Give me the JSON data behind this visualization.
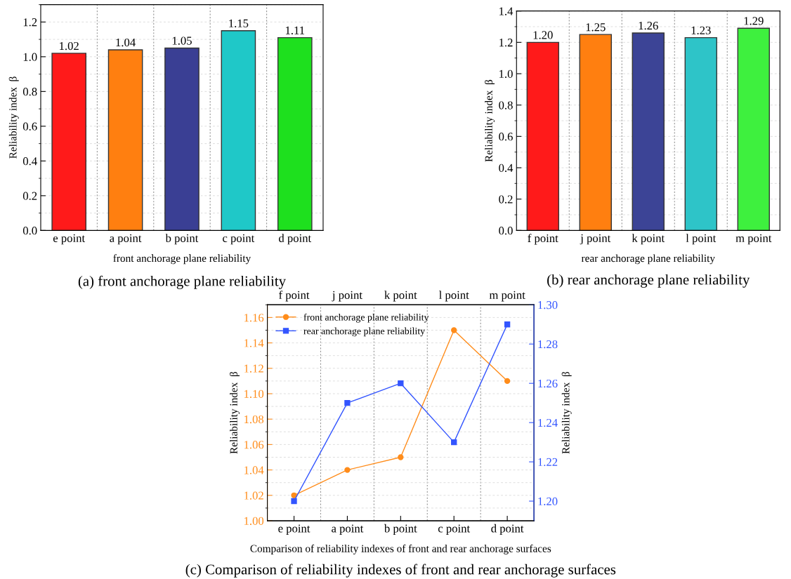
{
  "chart_data": [
    {
      "type": "bar",
      "title": "(a) front anchorage plane reliability",
      "xlabel": "front anchorage plane reliability",
      "ylabel": "Reliability index  β",
      "categories": [
        "e point",
        "a point",
        "b point",
        "c point",
        "d point"
      ],
      "values": [
        1.02,
        1.04,
        1.05,
        1.15,
        1.11
      ],
      "colors": [
        "#ff1a1a",
        "#ff7f10",
        "#3a3f94",
        "#1fc8c8",
        "#1ee01e"
      ],
      "value_labels": [
        "1.02",
        "1.04",
        "1.05",
        "1.15",
        "1.11"
      ],
      "ylim": [
        0,
        1.3
      ],
      "yticks": [
        {
          "value": 0,
          "label": "0.0"
        },
        {
          "value": 0.2,
          "label": "0.2"
        },
        {
          "value": 0.4,
          "label": "0.4"
        },
        {
          "value": 0.6,
          "label": "0.6"
        },
        {
          "value": 0.8,
          "label": "0.8"
        },
        {
          "value": 1.0,
          "label": "1.0"
        },
        {
          "value": 1.2,
          "label": "1.2"
        }
      ],
      "grid": true
    },
    {
      "type": "bar",
      "title": "(b) rear anchorage plane reliability",
      "xlabel": "rear anchorage plane reliability",
      "ylabel": "Reliability index  β",
      "categories": [
        "f point",
        "j point",
        "k point",
        "l point",
        "m point"
      ],
      "values": [
        1.2,
        1.25,
        1.26,
        1.23,
        1.29
      ],
      "colors": [
        "#ff1a1a",
        "#ff7f10",
        "#3c4496",
        "#2ec4c8",
        "#3ef03e"
      ],
      "value_labels": [
        "1.20",
        "1.25",
        "1.26",
        "1.23",
        "1.29"
      ],
      "ylim": [
        0,
        1.4
      ],
      "yticks": [
        {
          "value": 0,
          "label": "0.0"
        },
        {
          "value": 0.2,
          "label": "0.2"
        },
        {
          "value": 0.4,
          "label": "0.4"
        },
        {
          "value": 0.6,
          "label": "0.6"
        },
        {
          "value": 0.8,
          "label": "0.8"
        },
        {
          "value": 1.0,
          "label": "1.0"
        },
        {
          "value": 1.2,
          "label": "1.2"
        },
        {
          "value": 1.4,
          "label": "1.4"
        }
      ],
      "grid": true
    },
    {
      "type": "line",
      "title": "(c) Comparison of reliability indexes of front and rear anchorage surfaces",
      "xlabel": "Comparison of reliability indexes of front and rear anchorage surfaces",
      "ylabel": "Reliability index  β",
      "y2label": "Reliability index  β",
      "categories": [
        "e point",
        "a point",
        "b point",
        "c point",
        "d point"
      ],
      "annotations": [
        "f point",
        "j point",
        "k point",
        "l point",
        "m point"
      ],
      "series": [
        {
          "name": "front anchorage plane reliability",
          "color": "#ff8c1a",
          "marker": "circle",
          "values": [
            1.02,
            1.04,
            1.05,
            1.15,
            1.11
          ]
        },
        {
          "name": "rear anchorage plane reliability",
          "color": "#3355ff",
          "marker": "square",
          "axis": "y2",
          "values": [
            1.2,
            1.25,
            1.26,
            1.23,
            1.29
          ]
        }
      ],
      "ylim": [
        1.0,
        1.17
      ],
      "yticks": [
        {
          "value": 1.0,
          "label": "1.00"
        },
        {
          "value": 1.02,
          "label": "1.02"
        },
        {
          "value": 1.04,
          "label": "1.04"
        },
        {
          "value": 1.06,
          "label": "1.06"
        },
        {
          "value": 1.08,
          "label": "1.08"
        },
        {
          "value": 1.1,
          "label": "1.10"
        },
        {
          "value": 1.12,
          "label": "1.12"
        },
        {
          "value": 1.14,
          "label": "1.14"
        },
        {
          "value": 1.16,
          "label": "1.16"
        }
      ],
      "y2lim": [
        1.19,
        1.3
      ],
      "y2ticks": [
        {
          "value": 1.2,
          "label": "1.20"
        },
        {
          "value": 1.22,
          "label": "1.22"
        },
        {
          "value": 1.24,
          "label": "1.24"
        },
        {
          "value": 1.26,
          "label": "1.26"
        },
        {
          "value": 1.28,
          "label": "1.28"
        },
        {
          "value": 1.3,
          "label": "1.30"
        }
      ],
      "grid": true,
      "legend": "top left"
    }
  ]
}
